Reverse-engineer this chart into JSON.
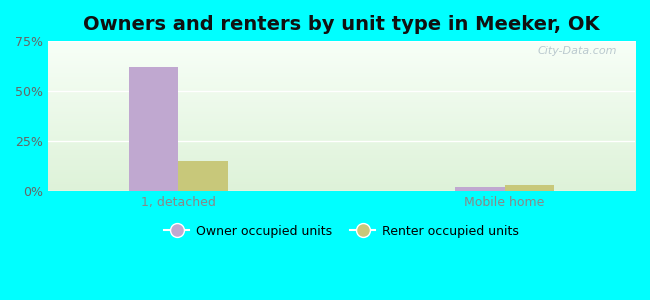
{
  "title": "Owners and renters by unit type in Meeker, OK",
  "categories": [
    "1, detached",
    "Mobile home"
  ],
  "series": [
    {
      "name": "Owner occupied units",
      "values": [
        62.0,
        2.0
      ],
      "color": "#c0a8d0"
    },
    {
      "name": "Renter occupied units",
      "values": [
        15.0,
        3.0
      ],
      "color": "#c8c87a"
    }
  ],
  "ylim": [
    0,
    75
  ],
  "yticks": [
    0,
    25,
    50,
    75
  ],
  "ytick_labels": [
    "0%",
    "25%",
    "50%",
    "75%"
  ],
  "bar_width": 0.38,
  "background_color": "#00ffff",
  "grid_color": "#ffffff",
  "title_fontsize": 14,
  "watermark": "City-Data.com",
  "group_centers": [
    1.0,
    3.5
  ],
  "xlim": [
    0.0,
    4.5
  ]
}
